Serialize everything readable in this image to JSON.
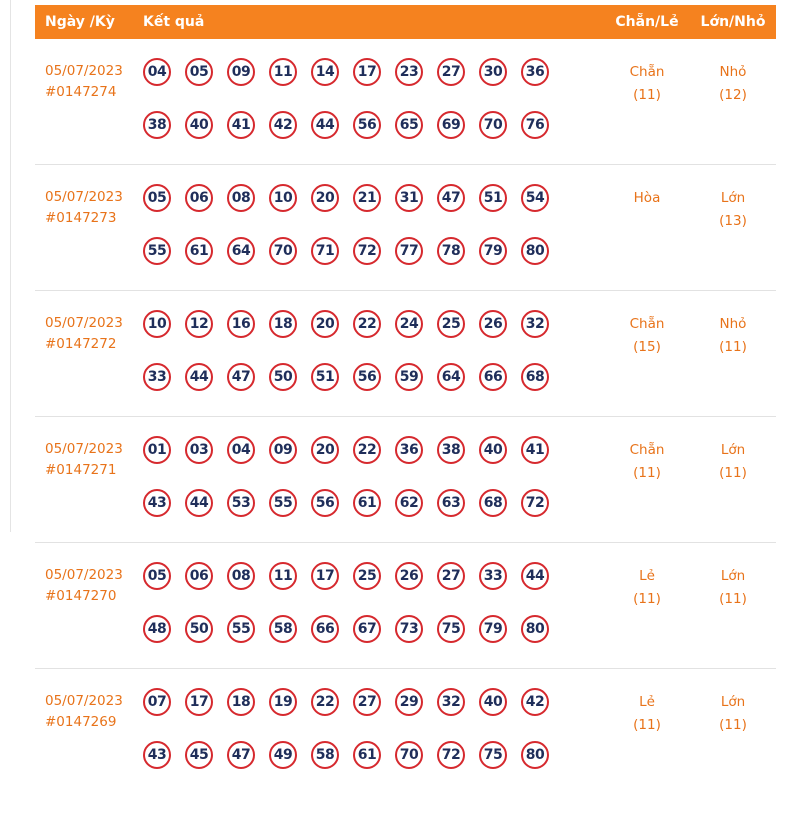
{
  "header": {
    "col_date": "Ngày /Kỳ",
    "col_result": "Kết quả",
    "col_even_odd": "Chẵn/Lẻ",
    "col_big_small": "Lớn/Nhỏ"
  },
  "colors": {
    "header_bg": "#F5821F",
    "accent_orange": "#E8731A",
    "circle_border": "#D6292E",
    "number_text": "#1F2E5A",
    "divider": "#E2E2E2"
  },
  "rows": [
    {
      "date": "05/07/2023",
      "id": "#0147274",
      "numbers_line1": [
        "04",
        "05",
        "09",
        "11",
        "14",
        "17",
        "23",
        "27",
        "30",
        "36"
      ],
      "numbers_line2": [
        "38",
        "40",
        "41",
        "42",
        "44",
        "56",
        "65",
        "69",
        "70",
        "76"
      ],
      "even_odd": "Chẵn",
      "even_odd_count": "(11)",
      "big_small": "Nhỏ",
      "big_small_count": "(12)"
    },
    {
      "date": "05/07/2023",
      "id": "#0147273",
      "numbers_line1": [
        "05",
        "06",
        "08",
        "10",
        "20",
        "21",
        "31",
        "47",
        "51",
        "54"
      ],
      "numbers_line2": [
        "55",
        "61",
        "64",
        "70",
        "71",
        "72",
        "77",
        "78",
        "79",
        "80"
      ],
      "even_odd": "Hòa",
      "even_odd_count": "",
      "big_small": "Lớn",
      "big_small_count": "(13)"
    },
    {
      "date": "05/07/2023",
      "id": "#0147272",
      "numbers_line1": [
        "10",
        "12",
        "16",
        "18",
        "20",
        "22",
        "24",
        "25",
        "26",
        "32"
      ],
      "numbers_line2": [
        "33",
        "44",
        "47",
        "50",
        "51",
        "56",
        "59",
        "64",
        "66",
        "68"
      ],
      "even_odd": "Chẵn",
      "even_odd_count": "(15)",
      "big_small": "Nhỏ",
      "big_small_count": "(11)"
    },
    {
      "date": "05/07/2023",
      "id": "#0147271",
      "numbers_line1": [
        "01",
        "03",
        "04",
        "09",
        "20",
        "22",
        "36",
        "38",
        "40",
        "41"
      ],
      "numbers_line2": [
        "43",
        "44",
        "53",
        "55",
        "56",
        "61",
        "62",
        "63",
        "68",
        "72"
      ],
      "even_odd": "Chẵn",
      "even_odd_count": "(11)",
      "big_small": "Lớn",
      "big_small_count": "(11)"
    },
    {
      "date": "05/07/2023",
      "id": "#0147270",
      "numbers_line1": [
        "05",
        "06",
        "08",
        "11",
        "17",
        "25",
        "26",
        "27",
        "33",
        "44"
      ],
      "numbers_line2": [
        "48",
        "50",
        "55",
        "58",
        "66",
        "67",
        "73",
        "75",
        "79",
        "80"
      ],
      "even_odd": "Lẻ",
      "even_odd_count": "(11)",
      "big_small": "Lớn",
      "big_small_count": "(11)"
    },
    {
      "date": "05/07/2023",
      "id": "#0147269",
      "numbers_line1": [
        "07",
        "17",
        "18",
        "19",
        "22",
        "27",
        "29",
        "32",
        "40",
        "42"
      ],
      "numbers_line2": [
        "43",
        "45",
        "47",
        "49",
        "58",
        "61",
        "70",
        "72",
        "75",
        "80"
      ],
      "even_odd": "Lẻ",
      "even_odd_count": "(11)",
      "big_small": "Lớn",
      "big_small_count": "(11)"
    }
  ]
}
